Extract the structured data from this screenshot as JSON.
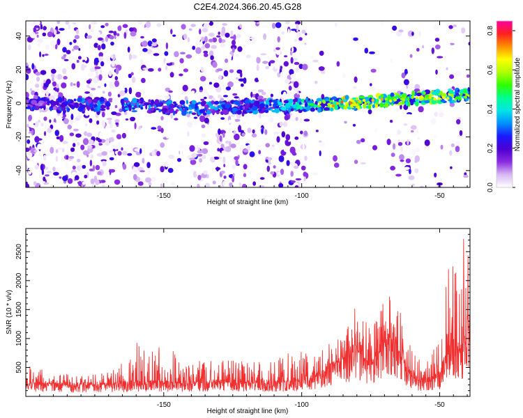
{
  "figure": {
    "title": "C2E4.2024.366.20.45.G28"
  },
  "chart_data": [
    {
      "type": "heatmap",
      "xlabel": "Height of straight line (km)",
      "ylabel": "Frequency (Hz)",
      "xlim": [
        -200,
        -39
      ],
      "ylim": [
        -50,
        49
      ],
      "xticks": [
        -150,
        -100,
        -50
      ],
      "yticks": [
        -40,
        -20,
        0,
        20,
        40
      ],
      "grid": false,
      "colorbar": {
        "label": "Normalized spectral amplitude",
        "range": [
          0.0,
          0.85
        ],
        "ticks": [
          0.0,
          0.2,
          0.4,
          0.6,
          0.8
        ],
        "colormap": [
          "#ffffff",
          "#d7b8f4",
          "#8a2be2",
          "#4b00d0",
          "#1a1aff",
          "#0090ff",
          "#00e5e5",
          "#00ff90",
          "#30ff00",
          "#b0ff00",
          "#ffff00",
          "#ff9000",
          "#ff2020",
          "#ff00a0"
        ]
      },
      "ridge": {
        "description": "band of high amplitude near 0 Hz, rising slightly with height",
        "points": [
          {
            "x": -200,
            "f": 0,
            "amp": 0.25
          },
          {
            "x": -163,
            "f": -1,
            "amp": 0.35
          },
          {
            "x": -150,
            "f": -2,
            "amp": 0.3
          },
          {
            "x": -135,
            "f": -3,
            "amp": 0.35
          },
          {
            "x": -120,
            "f": -2,
            "amp": 0.3
          },
          {
            "x": -105,
            "f": -1,
            "amp": 0.4
          },
          {
            "x": -95,
            "f": -1,
            "amp": 0.5
          },
          {
            "x": -85,
            "f": 0,
            "amp": 0.65
          },
          {
            "x": -75,
            "f": 1,
            "amp": 0.6
          },
          {
            "x": -68,
            "f": 2,
            "amp": 0.55
          },
          {
            "x": -60,
            "f": 3,
            "amp": 0.55
          },
          {
            "x": -50,
            "f": 4,
            "amp": 0.6
          },
          {
            "x": -40,
            "f": 5,
            "amp": 0.55
          }
        ]
      }
    },
    {
      "type": "line",
      "xlabel": "Height of straight line (km)",
      "ylabel": "SNR (10 * v/v)",
      "xlim": [
        -200,
        -39
      ],
      "ylim": [
        0,
        2900
      ],
      "xticks": [
        -150,
        -100,
        -50
      ],
      "yticks": [
        500,
        1000,
        1500,
        2000,
        2500
      ],
      "grid": false,
      "series": [
        {
          "color": "#f03030",
          "envelope": [
            {
              "x": -200,
              "base": 220,
              "peak": 560
            },
            {
              "x": -190,
              "base": 200,
              "peak": 400
            },
            {
              "x": -180,
              "base": 190,
              "peak": 380
            },
            {
              "x": -170,
              "base": 200,
              "peak": 420
            },
            {
              "x": -160,
              "base": 230,
              "peak": 950
            },
            {
              "x": -150,
              "base": 230,
              "peak": 880
            },
            {
              "x": -140,
              "base": 220,
              "peak": 620
            },
            {
              "x": -130,
              "base": 240,
              "peak": 650
            },
            {
              "x": -120,
              "base": 230,
              "peak": 600
            },
            {
              "x": -110,
              "base": 230,
              "peak": 640
            },
            {
              "x": -100,
              "base": 260,
              "peak": 900
            },
            {
              "x": -95,
              "base": 330,
              "peak": 760
            },
            {
              "x": -90,
              "base": 480,
              "peak": 960
            },
            {
              "x": -85,
              "base": 620,
              "peak": 1200
            },
            {
              "x": -80,
              "base": 800,
              "peak": 1600
            },
            {
              "x": -75,
              "base": 480,
              "peak": 1150
            },
            {
              "x": -70,
              "base": 900,
              "peak": 1700
            },
            {
              "x": -67,
              "base": 1000,
              "peak": 1900
            },
            {
              "x": -63,
              "base": 560,
              "peak": 1300
            },
            {
              "x": -60,
              "base": 300,
              "peak": 800
            },
            {
              "x": -55,
              "base": 250,
              "peak": 650
            },
            {
              "x": -50,
              "base": 350,
              "peak": 950
            },
            {
              "x": -46,
              "base": 900,
              "peak": 2600
            },
            {
              "x": -43,
              "base": 700,
              "peak": 2000
            },
            {
              "x": -41,
              "base": 900,
              "peak": 2900
            },
            {
              "x": -39,
              "base": 1200,
              "peak": 2900
            }
          ]
        }
      ]
    }
  ]
}
